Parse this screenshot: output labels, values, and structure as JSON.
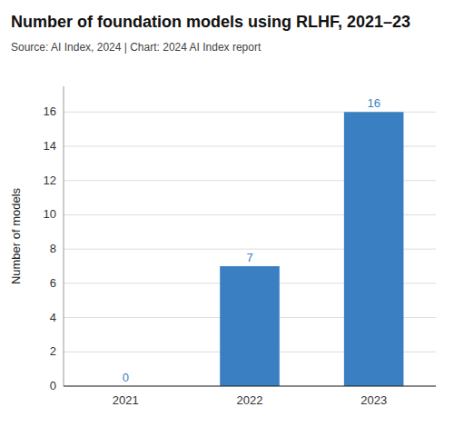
{
  "chart_data": {
    "type": "bar",
    "title": "Number of foundation models using RLHF, 2021–23",
    "subtitle": "Source: AI Index, 2024 | Chart: 2024 AI Index report",
    "categories": [
      "2021",
      "2022",
      "2023"
    ],
    "values": [
      0,
      7,
      16
    ],
    "color": "#3a7fc1",
    "ylabel": "Number of models",
    "ylim": [
      0,
      17.5
    ],
    "yticks": [
      0,
      2,
      4,
      6,
      8,
      10,
      12,
      14,
      16
    ],
    "grid": true,
    "data_labels": true
  }
}
